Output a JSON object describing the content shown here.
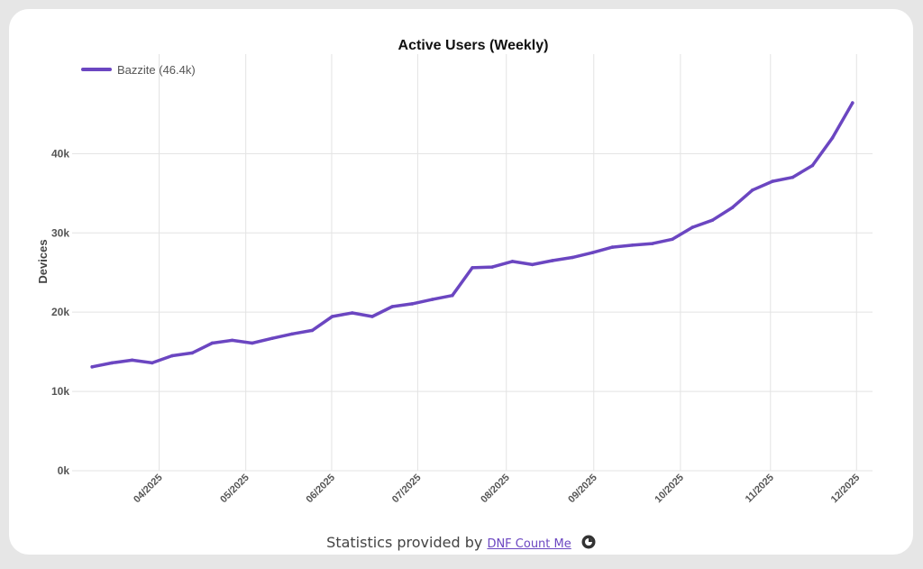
{
  "chart_data": {
    "type": "line",
    "title": "Active Users (Weekly)",
    "xlabel": "",
    "ylabel": "Devices",
    "ylim": [
      0,
      48000
    ],
    "yticks": [
      0,
      10000,
      20000,
      30000,
      40000
    ],
    "ytick_labels": [
      "0k",
      "10k",
      "20k",
      "30k",
      "40k"
    ],
    "x_ticks": [
      {
        "label": "04/2025",
        "x": 3.35
      },
      {
        "label": "05/2025",
        "x": 7.68
      },
      {
        "label": "06/2025",
        "x": 11.97
      },
      {
        "label": "07/2025",
        "x": 16.27
      },
      {
        "label": "08/2025",
        "x": 20.7
      },
      {
        "label": "09/2025",
        "x": 25.07
      },
      {
        "label": "10/2025",
        "x": 29.4
      },
      {
        "label": "11/2025",
        "x": 33.9
      },
      {
        "label": "12/2025",
        "x": 38.2
      }
    ],
    "grid": true,
    "legend_position": "top-left",
    "series": [
      {
        "name": "Bazzite (46.4k)",
        "color": "#6b46c1",
        "x": [
          0,
          1,
          2,
          3,
          4,
          5,
          6,
          7,
          8,
          9,
          10,
          11,
          12,
          13,
          14,
          15,
          16,
          17,
          18,
          19,
          20,
          21,
          22,
          23,
          24,
          25,
          26,
          27,
          28,
          29,
          30,
          31,
          32,
          33,
          34,
          35,
          36,
          37,
          38
        ],
        "values": [
          13100,
          13600,
          13950,
          13600,
          14500,
          14850,
          16100,
          16450,
          16100,
          16700,
          17250,
          17700,
          19450,
          19900,
          19450,
          20700,
          21050,
          21600,
          22100,
          25600,
          25700,
          26400,
          26000,
          26500,
          26900,
          27500,
          28200,
          28450,
          28650,
          29200,
          30700,
          31600,
          33200,
          35400,
          36500,
          37000,
          38500,
          42000,
          46400
        ]
      }
    ]
  },
  "footer": {
    "prefix": "Statistics provided by",
    "link_text": "DNF Count Me",
    "icon": "pie-chart-icon"
  }
}
